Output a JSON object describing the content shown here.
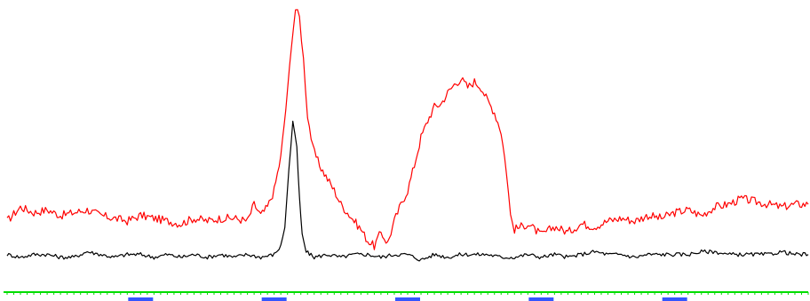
{
  "chart_data": {
    "type": "line",
    "title": "",
    "xlabel": "",
    "ylabel": "",
    "xlim": [
      0,
      600
    ],
    "ylim": [
      0,
      100
    ],
    "grid": false,
    "axis_color": "#00dd00",
    "tick_label_color": "#3355ff",
    "x_ticks": [
      100,
      200,
      300,
      400,
      500
    ],
    "series": [
      {
        "color": "#ff0000",
        "points": [
          [
            0,
            22
          ],
          [
            10,
            27
          ],
          [
            20,
            25
          ],
          [
            30,
            26
          ],
          [
            40,
            24
          ],
          [
            50,
            25
          ],
          [
            60,
            26
          ],
          [
            70,
            24
          ],
          [
            80,
            23
          ],
          [
            90,
            22
          ],
          [
            100,
            24
          ],
          [
            110,
            23
          ],
          [
            120,
            22
          ],
          [
            130,
            21
          ],
          [
            140,
            23
          ],
          [
            150,
            22
          ],
          [
            160,
            23
          ],
          [
            170,
            23
          ],
          [
            180,
            22
          ],
          [
            185,
            28
          ],
          [
            190,
            24
          ],
          [
            195,
            27
          ],
          [
            200,
            33
          ],
          [
            205,
            45
          ],
          [
            210,
            68
          ],
          [
            213,
            86
          ],
          [
            216,
            98
          ],
          [
            219,
            95
          ],
          [
            222,
            80
          ],
          [
            225,
            60
          ],
          [
            229,
            48
          ],
          [
            234,
            42
          ],
          [
            240,
            37
          ],
          [
            245,
            33
          ],
          [
            250,
            28
          ],
          [
            255,
            25
          ],
          [
            260,
            22
          ],
          [
            265,
            19
          ],
          [
            270,
            15
          ],
          [
            275,
            13
          ],
          [
            280,
            18
          ],
          [
            285,
            14
          ],
          [
            290,
            22
          ],
          [
            295,
            28
          ],
          [
            300,
            33
          ],
          [
            305,
            42
          ],
          [
            310,
            52
          ],
          [
            315,
            58
          ],
          [
            320,
            63
          ],
          [
            325,
            64
          ],
          [
            330,
            68
          ],
          [
            335,
            71
          ],
          [
            340,
            73
          ],
          [
            345,
            70
          ],
          [
            350,
            72
          ],
          [
            355,
            70
          ],
          [
            360,
            65
          ],
          [
            365,
            61
          ],
          [
            370,
            54
          ],
          [
            374,
            40
          ],
          [
            377,
            24
          ],
          [
            380,
            19
          ],
          [
            390,
            21
          ],
          [
            400,
            17
          ],
          [
            410,
            20
          ],
          [
            420,
            18
          ],
          [
            430,
            21
          ],
          [
            440,
            20
          ],
          [
            450,
            22
          ],
          [
            460,
            23
          ],
          [
            470,
            22
          ],
          [
            480,
            24
          ],
          [
            490,
            23
          ],
          [
            500,
            25
          ],
          [
            510,
            26
          ],
          [
            520,
            24
          ],
          [
            530,
            27
          ],
          [
            540,
            28
          ],
          [
            550,
            30
          ],
          [
            560,
            29
          ],
          [
            570,
            28
          ],
          [
            580,
            27
          ],
          [
            590,
            28
          ],
          [
            600,
            28
          ]
        ]
      },
      {
        "color": "#000000",
        "points": [
          [
            0,
            10
          ],
          [
            10,
            9
          ],
          [
            20,
            10
          ],
          [
            30,
            10
          ],
          [
            40,
            9
          ],
          [
            50,
            9
          ],
          [
            60,
            11
          ],
          [
            70,
            10
          ],
          [
            80,
            9
          ],
          [
            90,
            10
          ],
          [
            100,
            10
          ],
          [
            110,
            9
          ],
          [
            120,
            10
          ],
          [
            130,
            9
          ],
          [
            140,
            10
          ],
          [
            150,
            9
          ],
          [
            160,
            10
          ],
          [
            170,
            9
          ],
          [
            180,
            10
          ],
          [
            190,
            9
          ],
          [
            200,
            10
          ],
          [
            205,
            13
          ],
          [
            208,
            20
          ],
          [
            211,
            40
          ],
          [
            214,
            58
          ],
          [
            217,
            48
          ],
          [
            219,
            30
          ],
          [
            221,
            17
          ],
          [
            224,
            11
          ],
          [
            230,
            9
          ],
          [
            240,
            10
          ],
          [
            250,
            9
          ],
          [
            260,
            10
          ],
          [
            270,
            10
          ],
          [
            280,
            9
          ],
          [
            290,
            10
          ],
          [
            300,
            10
          ],
          [
            310,
            8
          ],
          [
            320,
            10
          ],
          [
            330,
            9
          ],
          [
            340,
            10
          ],
          [
            350,
            10
          ],
          [
            360,
            10
          ],
          [
            370,
            9
          ],
          [
            380,
            9
          ],
          [
            390,
            10
          ],
          [
            400,
            9
          ],
          [
            410,
            10
          ],
          [
            420,
            9
          ],
          [
            430,
            10
          ],
          [
            440,
            11
          ],
          [
            450,
            10
          ],
          [
            460,
            10
          ],
          [
            470,
            9
          ],
          [
            480,
            10
          ],
          [
            490,
            10
          ],
          [
            500,
            10
          ],
          [
            510,
            10
          ],
          [
            520,
            11
          ],
          [
            530,
            11
          ],
          [
            540,
            10
          ],
          [
            550,
            10
          ],
          [
            560,
            10
          ],
          [
            570,
            10
          ],
          [
            580,
            11
          ],
          [
            590,
            10
          ],
          [
            600,
            10
          ]
        ]
      }
    ]
  }
}
